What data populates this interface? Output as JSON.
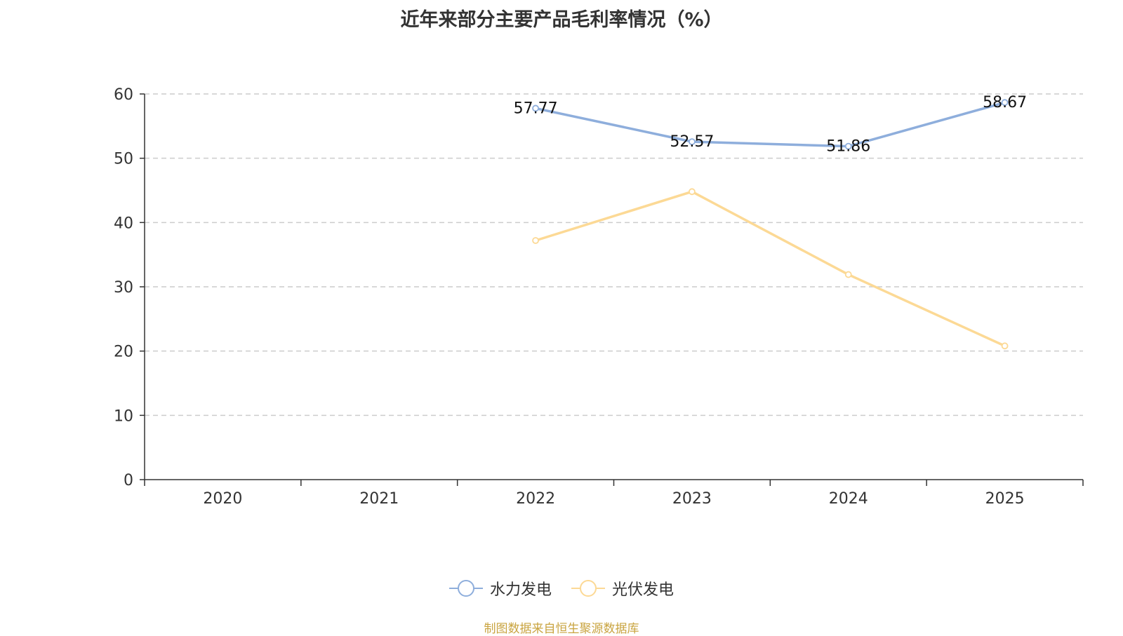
{
  "chart_data": {
    "type": "line",
    "title": "近年来部分主要产品毛利率情况（%）",
    "categories": [
      "2020",
      "2021",
      "2022",
      "2023",
      "2024",
      "2025"
    ],
    "yticks": [
      "0",
      "10",
      "20",
      "30",
      "40",
      "50",
      "60"
    ],
    "ylim": [
      0,
      60
    ],
    "xlabel": "",
    "ylabel": "",
    "grid": true,
    "legend_position": "bottom",
    "series": [
      {
        "name": "水力发电",
        "color": "#8eaedc",
        "values": [
          null,
          null,
          57.77,
          52.57,
          51.86,
          58.67
        ],
        "labels": [
          "",
          "",
          "57.77",
          "52.57",
          "51.86",
          "58.67"
        ]
      },
      {
        "name": "光伏发电",
        "color": "#fcd995",
        "values": [
          null,
          null,
          37.2,
          44.8,
          31.9,
          20.8
        ],
        "labels": [
          "",
          "",
          "",
          "",
          "",
          ""
        ]
      }
    ]
  },
  "footer": {
    "source_note": "制图数据来自恒生聚源数据库"
  }
}
